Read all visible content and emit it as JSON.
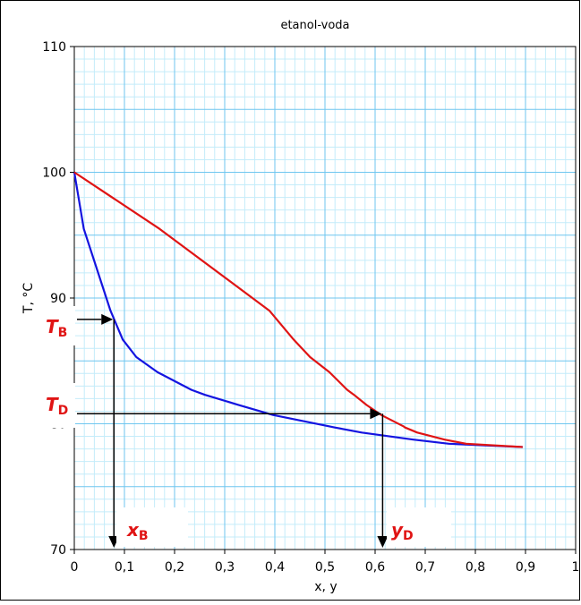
{
  "chart_data": {
    "type": "line",
    "title": "etanol-voda",
    "xlabel": "x, y",
    "ylabel": "T, °C",
    "xlim": [
      0,
      1
    ],
    "ylim": [
      70,
      110
    ],
    "x_ticks": [
      "0",
      "0,1",
      "0,2",
      "0,3",
      "0,4",
      "0,5",
      "0,6",
      "0,7",
      "0,8",
      "0,9",
      "1"
    ],
    "y_ticks": [
      "70",
      "80",
      "90",
      "100",
      "110"
    ],
    "x_tick_values": [
      0,
      0.1,
      0.2,
      0.3,
      0.4,
      0.5,
      0.6,
      0.7,
      0.8,
      0.9,
      1.0
    ],
    "y_tick_values": [
      70,
      80,
      90,
      100,
      110
    ],
    "grid": true,
    "minor_grid": true,
    "series": [
      {
        "color": "#1414e0",
        "points": [
          [
            0.0,
            100.0
          ],
          [
            0.019,
            95.5
          ],
          [
            0.0721,
            89.0
          ],
          [
            0.0966,
            86.7
          ],
          [
            0.1238,
            85.3
          ],
          [
            0.1661,
            84.1
          ],
          [
            0.2337,
            82.7
          ],
          [
            0.2608,
            82.3
          ],
          [
            0.3273,
            81.5
          ],
          [
            0.3965,
            80.7
          ],
          [
            0.5079,
            79.8
          ],
          [
            0.5198,
            79.7
          ],
          [
            0.5732,
            79.3
          ],
          [
            0.6763,
            78.74
          ],
          [
            0.7472,
            78.41
          ],
          [
            0.8943,
            78.15
          ]
        ]
      },
      {
        "color": "#e01414",
        "points": [
          [
            0.0,
            100.0
          ],
          [
            0.17,
            95.5
          ],
          [
            0.3891,
            89.0
          ],
          [
            0.4375,
            86.7
          ],
          [
            0.4704,
            85.3
          ],
          [
            0.5089,
            84.1
          ],
          [
            0.5445,
            82.7
          ],
          [
            0.558,
            82.3
          ],
          [
            0.5826,
            81.5
          ],
          [
            0.6122,
            80.7
          ],
          [
            0.6564,
            79.8
          ],
          [
            0.6599,
            79.7
          ],
          [
            0.6841,
            79.3
          ],
          [
            0.7385,
            78.74
          ],
          [
            0.7815,
            78.41
          ],
          [
            0.8943,
            78.15
          ]
        ]
      }
    ],
    "annotations": {
      "TB": {
        "base": "T",
        "sub": "B",
        "value": 88.3
      },
      "TD": {
        "base": "T",
        "sub": "D",
        "value": 80.8
      },
      "xB": {
        "base": "x",
        "sub": "B",
        "value": 0.079
      },
      "yD": {
        "base": "y",
        "sub": "D",
        "value": 0.615
      }
    },
    "annotation_color": "#e01414"
  }
}
